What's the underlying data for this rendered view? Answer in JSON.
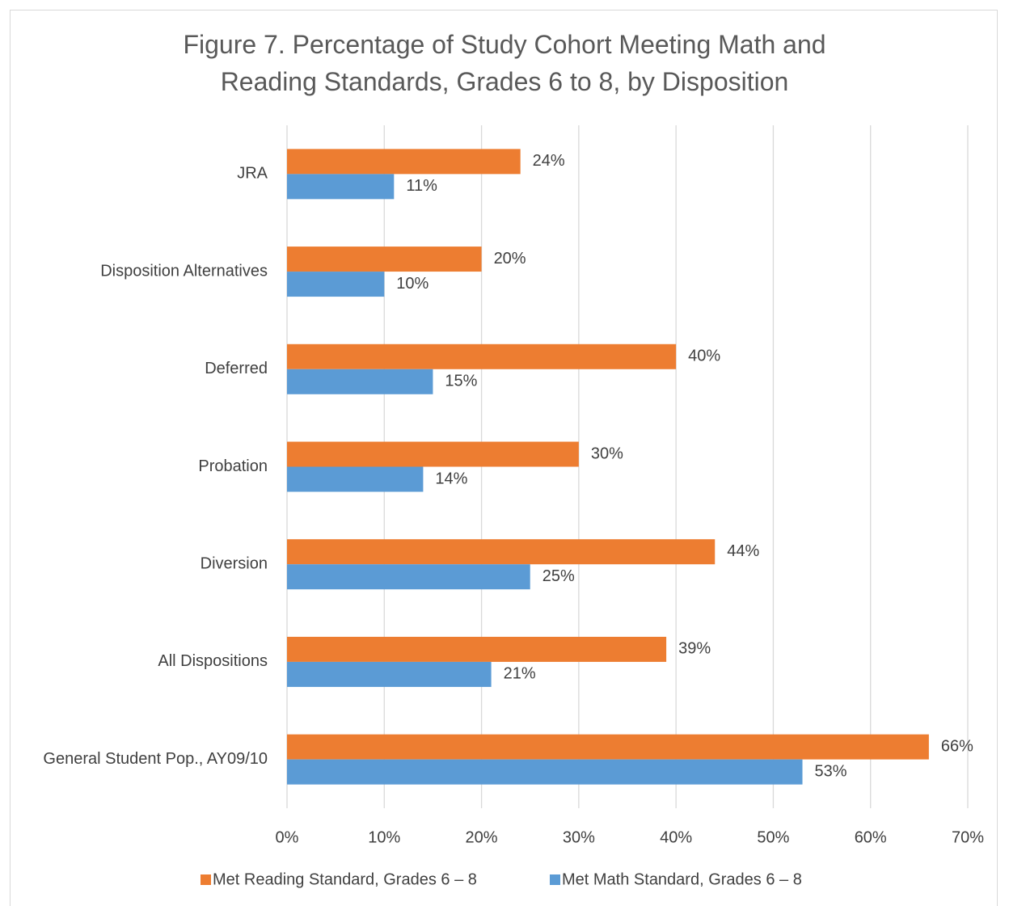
{
  "chart_data": {
    "type": "hbar",
    "title": "Figure 7. Percentage of Study Cohort Meeting Math and Reading Standards, Grades 6 to 8, by Disposition",
    "categories": [
      "JRA",
      "Disposition Alternatives",
      "Deferred",
      "Probation",
      "Diversion",
      "All Dispositions",
      "General Student Pop., AY09/10"
    ],
    "series": [
      {
        "name": "Met Reading Standard, Grades 6 – 8",
        "color": "#ED7D31",
        "values": [
          24,
          20,
          40,
          30,
          44,
          39,
          66
        ],
        "value_labels": [
          "24%",
          "20%",
          "40%",
          "30%",
          "44%",
          "39%",
          "66%"
        ]
      },
      {
        "name": "Met Math Standard, Grades 6 – 8",
        "color": "#5B9BD5",
        "values": [
          11,
          10,
          15,
          14,
          25,
          21,
          53
        ],
        "value_labels": [
          "11%",
          "10%",
          "15%",
          "14%",
          "25%",
          "21%",
          "53%"
        ]
      }
    ],
    "xlim": [
      0,
      70
    ],
    "xticks": [
      {
        "value": 0,
        "label": "0%"
      },
      {
        "value": 10,
        "label": "10%"
      },
      {
        "value": 20,
        "label": "20%"
      },
      {
        "value": 30,
        "label": "30%"
      },
      {
        "value": 40,
        "label": "40%"
      },
      {
        "value": 50,
        "label": "50%"
      },
      {
        "value": 60,
        "label": "60%"
      },
      {
        "value": 70,
        "label": "70%"
      }
    ],
    "grid": true,
    "legend": "bottom"
  }
}
